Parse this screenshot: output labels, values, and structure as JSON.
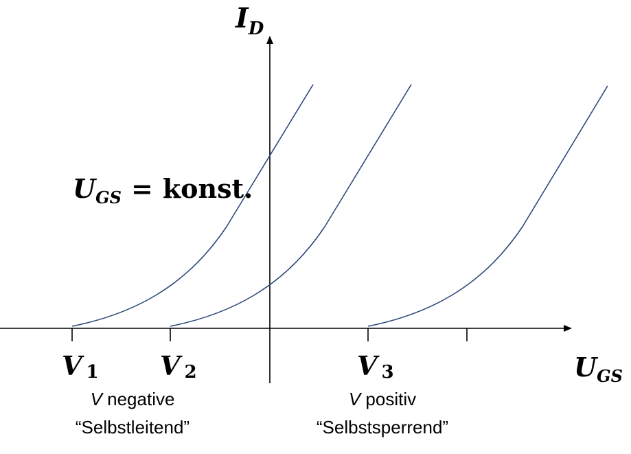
{
  "axes": {
    "y_label": "I",
    "y_label_sub": "D",
    "x_label": "U",
    "x_label_sub": "GS"
  },
  "annotation": {
    "var": "U",
    "var_sub": "GS",
    "equals": "=",
    "text": "konst."
  },
  "ticks": [
    {
      "label": "V",
      "sub": "1"
    },
    {
      "label": "V",
      "sub": "2"
    },
    {
      "label": "V",
      "sub": "3"
    }
  ],
  "captions": {
    "negative": {
      "v": "V",
      "word": " negative",
      "mode": "“Selbstleitend”"
    },
    "positive": {
      "v": "V",
      "word": " positiv",
      "mode": "“Selbstsperrend”"
    }
  },
  "colors": {
    "curve": "#2f4a7a",
    "axis": "#000000"
  }
}
